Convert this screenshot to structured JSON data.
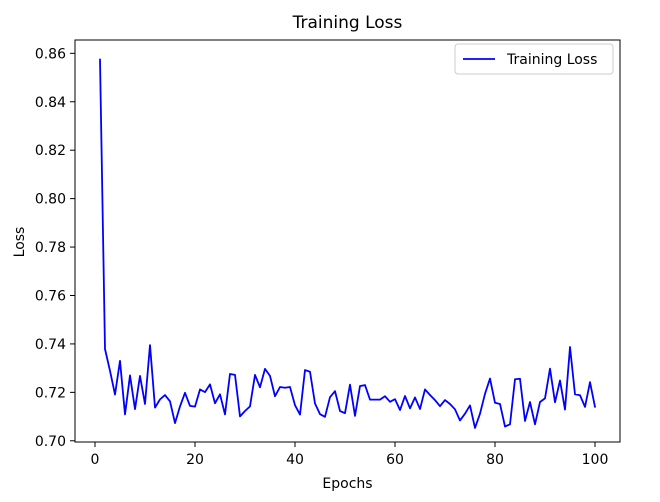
{
  "chart_data": {
    "type": "line",
    "title": "Training Loss",
    "xlabel": "Epochs",
    "ylabel": "Loss",
    "xlim": [
      -4,
      105
    ],
    "ylim": [
      0.6995,
      0.8655
    ],
    "x_ticks": [
      0,
      20,
      40,
      60,
      80,
      100
    ],
    "y_ticks": [
      0.7,
      0.72,
      0.74,
      0.76,
      0.78,
      0.8,
      0.82,
      0.84,
      0.86
    ],
    "y_tick_labels": [
      "0.70",
      "0.72",
      "0.74",
      "0.76",
      "0.78",
      "0.80",
      "0.82",
      "0.84",
      "0.86"
    ],
    "grid": false,
    "legend_position": "upper-right",
    "series": [
      {
        "name": "Training Loss",
        "color": "#0000ff",
        "x": [
          1,
          2,
          3,
          4,
          5,
          6,
          7,
          8,
          9,
          10,
          11,
          12,
          13,
          14,
          15,
          16,
          17,
          18,
          19,
          20,
          21,
          22,
          23,
          24,
          25,
          26,
          27,
          28,
          29,
          30,
          31,
          32,
          33,
          34,
          35,
          36,
          37,
          38,
          39,
          40,
          41,
          42,
          43,
          44,
          45,
          46,
          47,
          48,
          49,
          50,
          51,
          52,
          53,
          54,
          55,
          56,
          57,
          58,
          59,
          60,
          61,
          62,
          63,
          64,
          65,
          66,
          67,
          68,
          69,
          70,
          71,
          72,
          73,
          74,
          75,
          76,
          77,
          78,
          79,
          80,
          81,
          82,
          83,
          84,
          85,
          86,
          87,
          88,
          89,
          90,
          91,
          92,
          93,
          94,
          95,
          96,
          97,
          98,
          99,
          100
        ],
        "values": [
          0.8575,
          0.7379,
          0.7289,
          0.7191,
          0.733,
          0.7109,
          0.727,
          0.7131,
          0.7268,
          0.7152,
          0.7395,
          0.7137,
          0.7171,
          0.7189,
          0.7163,
          0.7073,
          0.7142,
          0.7198,
          0.7144,
          0.7141,
          0.7212,
          0.7201,
          0.7233,
          0.7155,
          0.7192,
          0.7109,
          0.7276,
          0.7272,
          0.7101,
          0.7123,
          0.7142,
          0.7272,
          0.7221,
          0.7297,
          0.7268,
          0.7184,
          0.7222,
          0.7219,
          0.7222,
          0.7147,
          0.7108,
          0.7292,
          0.7285,
          0.7154,
          0.711,
          0.7099,
          0.718,
          0.7205,
          0.7123,
          0.7114,
          0.7232,
          0.7103,
          0.7226,
          0.723,
          0.717,
          0.717,
          0.717,
          0.7184,
          0.7161,
          0.7172,
          0.7127,
          0.7185,
          0.7134,
          0.7179,
          0.7131,
          0.7212,
          0.7189,
          0.7168,
          0.7143,
          0.7168,
          0.7152,
          0.713,
          0.7084,
          0.7112,
          0.7146,
          0.7053,
          0.7112,
          0.7194,
          0.7257,
          0.7157,
          0.7152,
          0.7059,
          0.7068,
          0.7254,
          0.7256,
          0.7082,
          0.716,
          0.7068,
          0.716,
          0.7175,
          0.7298,
          0.7159,
          0.7249,
          0.7129,
          0.7387,
          0.7192,
          0.7188,
          0.714,
          0.7242,
          0.714
        ]
      }
    ]
  }
}
